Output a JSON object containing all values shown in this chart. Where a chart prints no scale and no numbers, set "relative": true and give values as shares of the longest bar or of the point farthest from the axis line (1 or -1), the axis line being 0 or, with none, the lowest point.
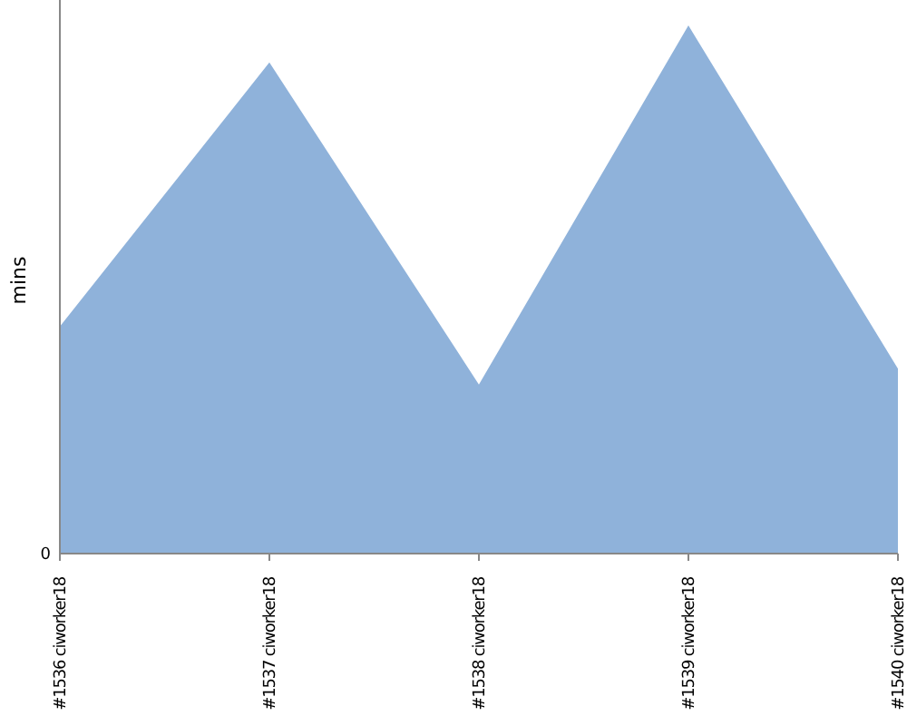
{
  "chart_data": {
    "type": "area",
    "relative": true,
    "ylabel": "mins",
    "annotations": [
      "0"
    ],
    "categories": [
      "#1536 ciworker18",
      "#1537 ciworker18",
      "#1538 ciworker18",
      "#1539 ciworker18",
      "#1540 ciworker18"
    ],
    "series": [
      {
        "color": "#8fb2da",
        "values": [
          0.43,
          0.93,
          0.32,
          1,
          0.35
        ]
      }
    ]
  }
}
